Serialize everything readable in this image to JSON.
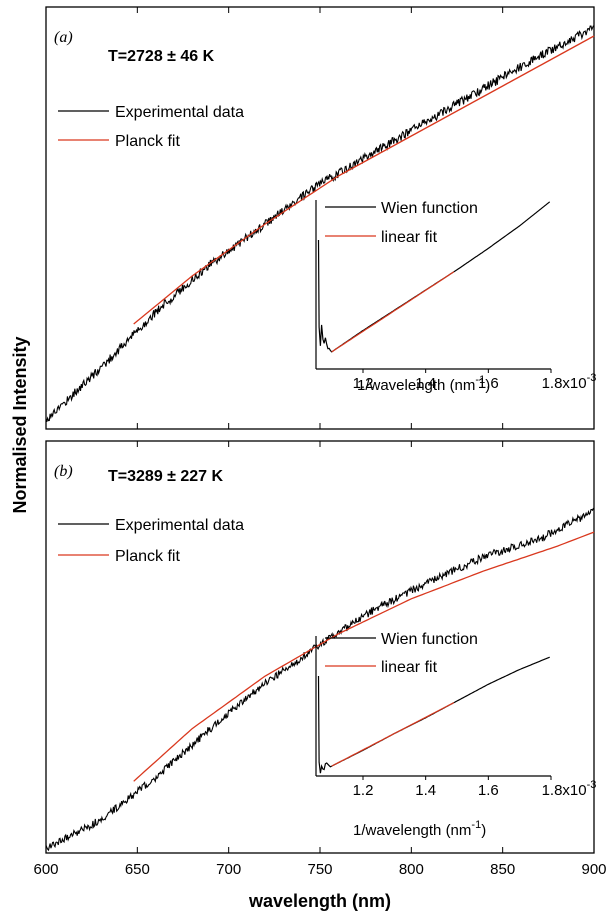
{
  "figure": {
    "ylabel": "Normalised Intensity",
    "xlabel": "wavelength (nm)"
  },
  "chart_data": [
    {
      "type": "line",
      "panel_label": "(a)",
      "annotation": "T=2728 ± 46 K",
      "xlim": [
        600,
        900
      ],
      "y_ticks_shown": false,
      "series": [
        {
          "name": "Experimental data",
          "color": "#000000",
          "x": [
            600,
            630,
            660,
            690,
            720,
            750,
            780,
            810,
            840,
            870,
            900
          ],
          "y": [
            0.0,
            0.13,
            0.27,
            0.39,
            0.49,
            0.59,
            0.67,
            0.75,
            0.83,
            0.91,
            0.98
          ]
        },
        {
          "name": "Planck fit",
          "color": "#d9381e",
          "x": [
            648,
            680,
            720,
            760,
            800,
            840,
            880,
            900
          ],
          "y": [
            0.24,
            0.36,
            0.49,
            0.61,
            0.71,
            0.81,
            0.91,
            0.96
          ]
        }
      ],
      "legend_position": "top-left",
      "inset": {
        "xlabel": "1/wavelength (nm",
        "xlabel_sup": "-1",
        "xlabel_close": ")",
        "xlim": [
          1.05,
          1.8
        ],
        "xtick_labels": [
          "1.2",
          "1.4",
          "1.6",
          "1.8x10"
        ],
        "xtick_exponent": "-3",
        "series": [
          {
            "name": "Wien function",
            "color": "#000000",
            "x": [
              1.06,
              1.1,
              1.2,
              1.3,
              1.4,
              1.5,
              1.6,
              1.7,
              1.8
            ],
            "y": [
              0.28,
              0.11,
              0.29,
              0.46,
              0.63,
              0.8,
              0.98,
              1.17,
              1.38
            ]
          },
          {
            "name": "linear fit",
            "color": "#d9381e",
            "x": [
              1.1,
              1.5
            ],
            "y": [
              0.11,
              0.8
            ]
          }
        ]
      }
    },
    {
      "type": "line",
      "panel_label": "(b)",
      "annotation": "T=3289 ± 227 K",
      "xlim": [
        600,
        900
      ],
      "xtick_labels": [
        "600",
        "650",
        "700",
        "750",
        "800",
        "850",
        "900"
      ],
      "y_ticks_shown": false,
      "series": [
        {
          "name": "Experimental data",
          "color": "#000000",
          "x": [
            600,
            630,
            660,
            690,
            720,
            750,
            780,
            810,
            840,
            870,
            900
          ],
          "y": [
            0.0,
            0.08,
            0.2,
            0.34,
            0.47,
            0.58,
            0.68,
            0.76,
            0.83,
            0.88,
            0.96
          ]
        },
        {
          "name": "Planck fit",
          "color": "#d9381e",
          "x": [
            648,
            680,
            720,
            760,
            800,
            840,
            880,
            900
          ],
          "y": [
            0.19,
            0.34,
            0.49,
            0.61,
            0.71,
            0.79,
            0.86,
            0.9
          ]
        }
      ],
      "legend_position": "top-left",
      "inset": {
        "xlabel": "1/wavelength (nm",
        "xlabel_sup": "-1",
        "xlabel_close": ")",
        "xlim": [
          1.05,
          1.8
        ],
        "xtick_labels": [
          "1.2",
          "1.4",
          "1.6",
          "1.8x10"
        ],
        "xtick_exponent": "-3",
        "series": [
          {
            "name": "Wien function",
            "color": "#000000",
            "x": [
              1.06,
              1.1,
              1.2,
              1.3,
              1.4,
              1.5,
              1.6,
              1.7,
              1.8
            ],
            "y": [
              0.1,
              0.06,
              0.22,
              0.39,
              0.55,
              0.72,
              0.89,
              1.04,
              1.17
            ]
          },
          {
            "name": "linear fit",
            "color": "#d9381e",
            "x": [
              1.1,
              1.5
            ],
            "y": [
              0.06,
              0.72
            ]
          }
        ]
      }
    }
  ]
}
